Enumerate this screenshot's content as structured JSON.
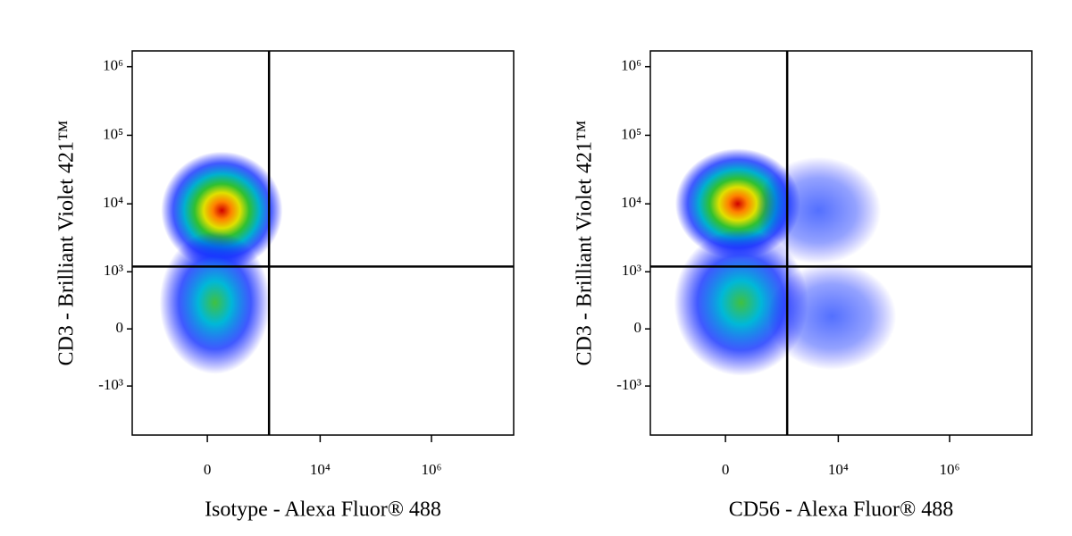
{
  "chart_data": [
    {
      "type": "scatter",
      "xscale": "biexponential",
      "yscale": "biexponential",
      "xlabel": "Isotype - Alexa Fluor® 488",
      "ylabel": "CD3 - Brilliant Violet 421™",
      "xlim": [
        -2100,
        30000000
      ],
      "ylim": [
        -5300,
        1700000
      ],
      "xticks": [
        0,
        {
          "value": 10000,
          "label": "10⁴"
        },
        {
          "value": 1000000,
          "label": "10⁶"
        }
      ],
      "yticks": [
        {
          "value": -1000,
          "label": "-10³"
        },
        0,
        {
          "value": 1000,
          "label": "10³"
        },
        {
          "value": 10000,
          "label": "10⁴"
        },
        {
          "value": 100000,
          "label": "10⁵"
        },
        {
          "value": 1000000,
          "label": "10⁶"
        }
      ],
      "gates": {
        "x": 1200,
        "y": 1200
      },
      "x": [
        120,
        60
      ],
      "y": [
        8000,
        300
      ]
    },
    {
      "type": "scatter",
      "xscale": "biexponential",
      "yscale": "biexponential",
      "xlabel": "CD56 - Alexa Fluor® 488",
      "ylabel": "CD3 - Brilliant Violet 421™",
      "xlim": [
        -2100,
        30000000
      ],
      "ylim": [
        -5300,
        1700000
      ],
      "xticks": [
        0,
        {
          "value": 10000,
          "label": "10⁴"
        },
        {
          "value": 1000000,
          "label": "10⁶"
        }
      ],
      "yticks": [
        {
          "value": -1000,
          "label": "-10³"
        },
        0,
        {
          "value": 1000,
          "label": "10³"
        },
        {
          "value": 10000,
          "label": "10⁴"
        },
        {
          "value": 100000,
          "label": "10⁵"
        },
        {
          "value": 1000000,
          "label": "10⁶"
        }
      ],
      "gates": {
        "x": 1200,
        "y": 1200
      },
      "x": [
        100,
        4400,
        130,
        7700
      ],
      "y": [
        10000,
        8000,
        300,
        130
      ]
    }
  ]
}
